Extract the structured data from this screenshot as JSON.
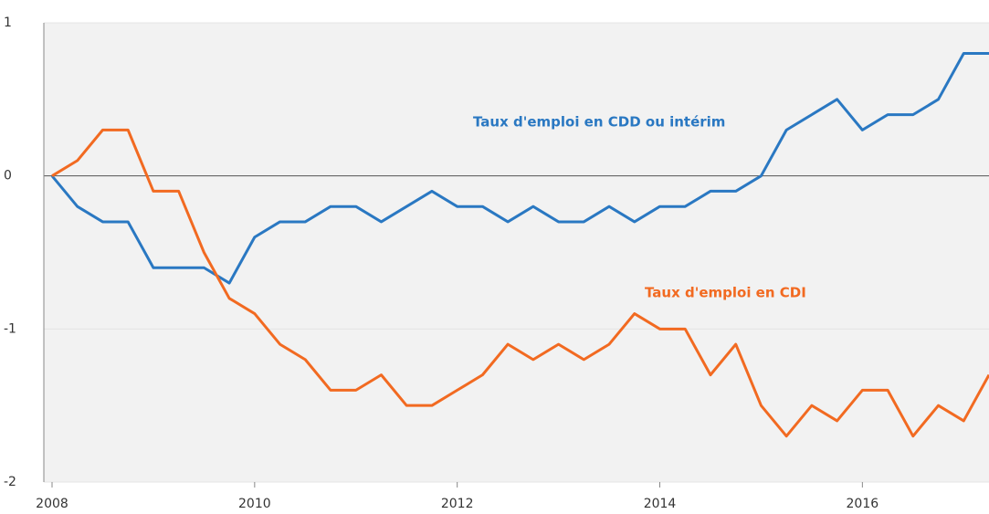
{
  "chart_data": {
    "type": "line",
    "x": [
      2008,
      2008.25,
      2008.5,
      2008.75,
      2009,
      2009.25,
      2009.5,
      2009.75,
      2010,
      2010.25,
      2010.5,
      2010.75,
      2011,
      2011.25,
      2011.5,
      2011.75,
      2012,
      2012.25,
      2012.5,
      2012.75,
      2013,
      2013.25,
      2013.5,
      2013.75,
      2014,
      2014.25,
      2014.5,
      2014.75,
      2015,
      2015.25,
      2015.5,
      2015.75,
      2016,
      2016.25,
      2016.5,
      2016.75,
      2017,
      2017.25
    ],
    "series": [
      {
        "name": "Taux d'emploi en CDD ou intérim",
        "color": "#2a78c2",
        "values": [
          0,
          -0.2,
          -0.3,
          -0.3,
          -0.6,
          -0.6,
          -0.6,
          -0.7,
          -0.4,
          -0.3,
          -0.3,
          -0.2,
          -0.2,
          -0.3,
          -0.2,
          -0.1,
          -0.2,
          -0.2,
          -0.3,
          -0.2,
          -0.3,
          -0.3,
          -0.2,
          -0.3,
          -0.2,
          -0.2,
          -0.1,
          -0.1,
          0,
          0.3,
          0.4,
          0.5,
          0.3,
          0.4,
          0.4,
          0.5,
          0.8,
          0.8
        ]
      },
      {
        "name": "Taux d'emploi en CDI",
        "color": "#f26a21",
        "values": [
          0,
          0.1,
          0.3,
          0.3,
          -0.1,
          -0.1,
          -0.5,
          -0.8,
          -0.9,
          -1.1,
          -1.2,
          -1.4,
          -1.4,
          -1.3,
          -1.5,
          -1.5,
          -1.4,
          -1.3,
          -1.1,
          -1.2,
          -1.1,
          -1.2,
          -1.1,
          -0.9,
          -1.0,
          -1.0,
          -1.3,
          -1.1,
          -1.5,
          -1.7,
          -1.5,
          -1.6,
          -1.4,
          -1.4,
          -1.7,
          -1.5,
          -1.6,
          -1.3
        ]
      }
    ],
    "xlim": [
      2008,
      2017.25
    ],
    "xticks": [
      2008,
      2010,
      2012,
      2014,
      2016
    ],
    "ylim": [
      -2,
      1
    ],
    "yticks": [
      -2,
      -1,
      0,
      1
    ],
    "grid": true
  }
}
